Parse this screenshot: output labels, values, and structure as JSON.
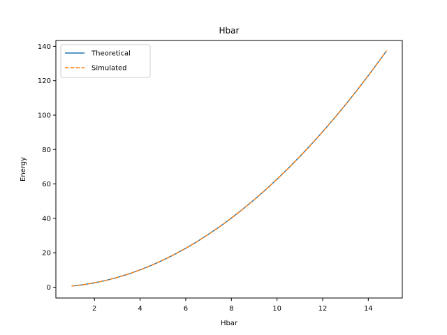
{
  "chart_data": {
    "type": "line",
    "title": "Hbar",
    "xlabel": "Hbar",
    "ylabel": "Energy",
    "xlim": [
      0.31,
      15.49
    ],
    "ylim": [
      -6.3,
      143.4
    ],
    "xticks": [
      2,
      4,
      6,
      8,
      10,
      12,
      14
    ],
    "yticks": [
      0,
      20,
      40,
      60,
      80,
      100,
      120,
      140
    ],
    "grid": false,
    "legend_position": "top-left",
    "x": [
      1.0,
      1.5,
      2.0,
      2.5,
      3.0,
      3.5,
      4.0,
      4.5,
      5.0,
      5.5,
      6.0,
      6.5,
      7.0,
      7.5,
      8.0,
      8.5,
      9.0,
      9.5,
      10.0,
      10.5,
      11.0,
      11.5,
      12.0,
      12.5,
      13.0,
      13.5,
      14.0,
      14.5,
      14.8
    ],
    "series": [
      {
        "name": "Theoretical",
        "color": "#1f77b4",
        "dash": "solid",
        "values": [
          0.63,
          1.41,
          2.51,
          3.92,
          5.65,
          7.69,
          10.04,
          12.71,
          15.69,
          18.98,
          22.59,
          26.51,
          30.75,
          35.3,
          40.16,
          45.34,
          50.83,
          56.63,
          62.75,
          69.18,
          75.93,
          82.98,
          90.36,
          98.04,
          106.04,
          114.35,
          122.98,
          131.92,
          137.42
        ]
      },
      {
        "name": "Simulated",
        "color": "#ff7f0e",
        "dash": "dashed",
        "values": [
          0.63,
          1.41,
          2.51,
          3.92,
          5.65,
          7.69,
          10.04,
          12.71,
          15.69,
          18.98,
          22.59,
          26.51,
          30.75,
          35.3,
          40.16,
          45.34,
          50.83,
          56.63,
          62.75,
          69.18,
          75.93,
          82.98,
          90.36,
          98.04,
          106.04,
          114.35,
          122.98,
          131.92,
          137.42
        ]
      }
    ]
  }
}
